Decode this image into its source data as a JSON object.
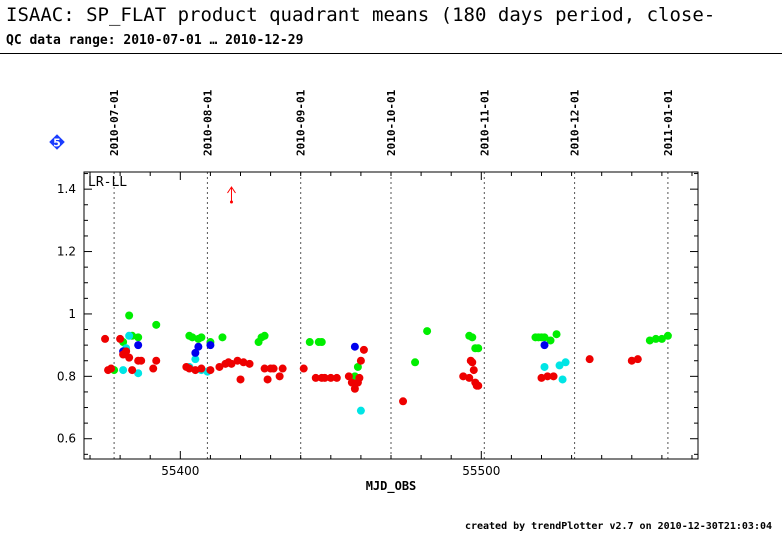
{
  "header": {
    "title": "ISAAC: SP_FLAT product quadrant means (180 days period, close-",
    "subtitle": "QC data range: 2010-07-01 … 2010-12-29"
  },
  "footer": {
    "text": "created by trendPlotter v2.7 on 2010-12-30T21:03:04"
  },
  "badge": {
    "number": "5",
    "color": "#1a3cff"
  },
  "chart_data": {
    "type": "scatter",
    "xlabel": "MJD_OBS",
    "ylabel": "",
    "corner_label": "LR-LL",
    "xlim": [
      55368,
      55572
    ],
    "ylim": [
      0.535,
      1.455
    ],
    "x_ticks": [
      55400,
      55500
    ],
    "x_minor_step": 10,
    "y_ticks": [
      0.6,
      0.8,
      1,
      1.2,
      1.4
    ],
    "y_tick_labels": [
      "0.6",
      "0.8",
      "1",
      "1.2",
      "1.4"
    ],
    "y_minor_step": 0.05,
    "date_markers": [
      {
        "label": "2010-07-01",
        "mjd": 55378
      },
      {
        "label": "2010-08-01",
        "mjd": 55409
      },
      {
        "label": "2010-09-01",
        "mjd": 55440
      },
      {
        "label": "2010-10-01",
        "mjd": 55470
      },
      {
        "label": "2010-11-01",
        "mjd": 55501
      },
      {
        "label": "2010-12-01",
        "mjd": 55531
      },
      {
        "label": "2011-01-01",
        "mjd": 55562
      }
    ],
    "outlier_arrow": {
      "x": 55417,
      "y": 1.4,
      "color": "#ff0000"
    },
    "grid": false,
    "series": [
      {
        "color": "#00ee00",
        "points": [
          [
            55378,
            0.82
          ],
          [
            55381,
            0.91
          ],
          [
            55383,
            0.995
          ],
          [
            55384,
            0.93
          ],
          [
            55386,
            0.925
          ],
          [
            55392,
            0.965
          ],
          [
            55403,
            0.93
          ],
          [
            55404,
            0.925
          ],
          [
            55406,
            0.92
          ],
          [
            55407,
            0.925
          ],
          [
            55410,
            0.91
          ],
          [
            55414,
            0.925
          ],
          [
            55426,
            0.91
          ],
          [
            55427,
            0.925
          ],
          [
            55428,
            0.93
          ],
          [
            55443,
            0.91
          ],
          [
            55446,
            0.91
          ],
          [
            55447,
            0.91
          ],
          [
            55458,
            0.8
          ],
          [
            55459,
            0.83
          ],
          [
            55478,
            0.845
          ],
          [
            55482,
            0.945
          ],
          [
            55496,
            0.93
          ],
          [
            55497,
            0.925
          ],
          [
            55498,
            0.89
          ],
          [
            55499,
            0.89
          ],
          [
            55518,
            0.925
          ],
          [
            55519,
            0.925
          ],
          [
            55520,
            0.925
          ],
          [
            55521,
            0.925
          ],
          [
            55523,
            0.915
          ],
          [
            55525,
            0.935
          ],
          [
            55556,
            0.915
          ],
          [
            55558,
            0.92
          ],
          [
            55560,
            0.92
          ],
          [
            55562,
            0.93
          ]
        ]
      },
      {
        "color": "#00e5e5",
        "points": [
          [
            55381,
            0.82
          ],
          [
            55382,
            0.89
          ],
          [
            55383,
            0.93
          ],
          [
            55386,
            0.81
          ],
          [
            55403,
            0.83
          ],
          [
            55405,
            0.855
          ],
          [
            55407,
            0.82
          ],
          [
            55409,
            0.815
          ],
          [
            55460,
            0.69
          ],
          [
            55521,
            0.83
          ],
          [
            55526,
            0.835
          ],
          [
            55527,
            0.79
          ],
          [
            55528,
            0.845
          ]
        ]
      },
      {
        "color": "#0000ee",
        "points": [
          [
            55381,
            0.88
          ],
          [
            55386,
            0.9
          ],
          [
            55405,
            0.875
          ],
          [
            55406,
            0.895
          ],
          [
            55410,
            0.9
          ],
          [
            55458,
            0.895
          ],
          [
            55521,
            0.9
          ]
        ]
      },
      {
        "color": "#ee0000",
        "points": [
          [
            55375,
            0.92
          ],
          [
            55376,
            0.82
          ],
          [
            55377,
            0.825
          ],
          [
            55380,
            0.92
          ],
          [
            55381,
            0.87
          ],
          [
            55382,
            0.88
          ],
          [
            55383,
            0.86
          ],
          [
            55384,
            0.82
          ],
          [
            55386,
            0.85
          ],
          [
            55387,
            0.85
          ],
          [
            55391,
            0.825
          ],
          [
            55392,
            0.85
          ],
          [
            55402,
            0.83
          ],
          [
            55403,
            0.825
          ],
          [
            55405,
            0.82
          ],
          [
            55407,
            0.825
          ],
          [
            55410,
            0.82
          ],
          [
            55413,
            0.83
          ],
          [
            55415,
            0.84
          ],
          [
            55416,
            0.845
          ],
          [
            55417,
            0.84
          ],
          [
            55419,
            0.85
          ],
          [
            55420,
            0.79
          ],
          [
            55421,
            0.845
          ],
          [
            55423,
            0.84
          ],
          [
            55428,
            0.825
          ],
          [
            55429,
            0.79
          ],
          [
            55430,
            0.825
          ],
          [
            55431,
            0.825
          ],
          [
            55433,
            0.8
          ],
          [
            55434,
            0.825
          ],
          [
            55441,
            0.825
          ],
          [
            55445,
            0.795
          ],
          [
            55447,
            0.795
          ],
          [
            55448,
            0.795
          ],
          [
            55450,
            0.795
          ],
          [
            55452,
            0.795
          ],
          [
            55456,
            0.8
          ],
          [
            55457,
            0.78
          ],
          [
            55458,
            0.76
          ],
          [
            55459,
            0.78
          ],
          [
            55459.5,
            0.795
          ],
          [
            55460,
            0.85
          ],
          [
            55461,
            0.885
          ],
          [
            55474,
            0.72
          ],
          [
            55494,
            0.8
          ],
          [
            55496,
            0.795
          ],
          [
            55496.5,
            0.85
          ],
          [
            55497,
            0.845
          ],
          [
            55497.5,
            0.82
          ],
          [
            55498,
            0.78
          ],
          [
            55498.5,
            0.77
          ],
          [
            55499,
            0.77
          ],
          [
            55520,
            0.795
          ],
          [
            55522,
            0.8
          ],
          [
            55524,
            0.8
          ],
          [
            55536,
            0.855
          ],
          [
            55550,
            0.85
          ],
          [
            55552,
            0.855
          ]
        ]
      }
    ]
  }
}
